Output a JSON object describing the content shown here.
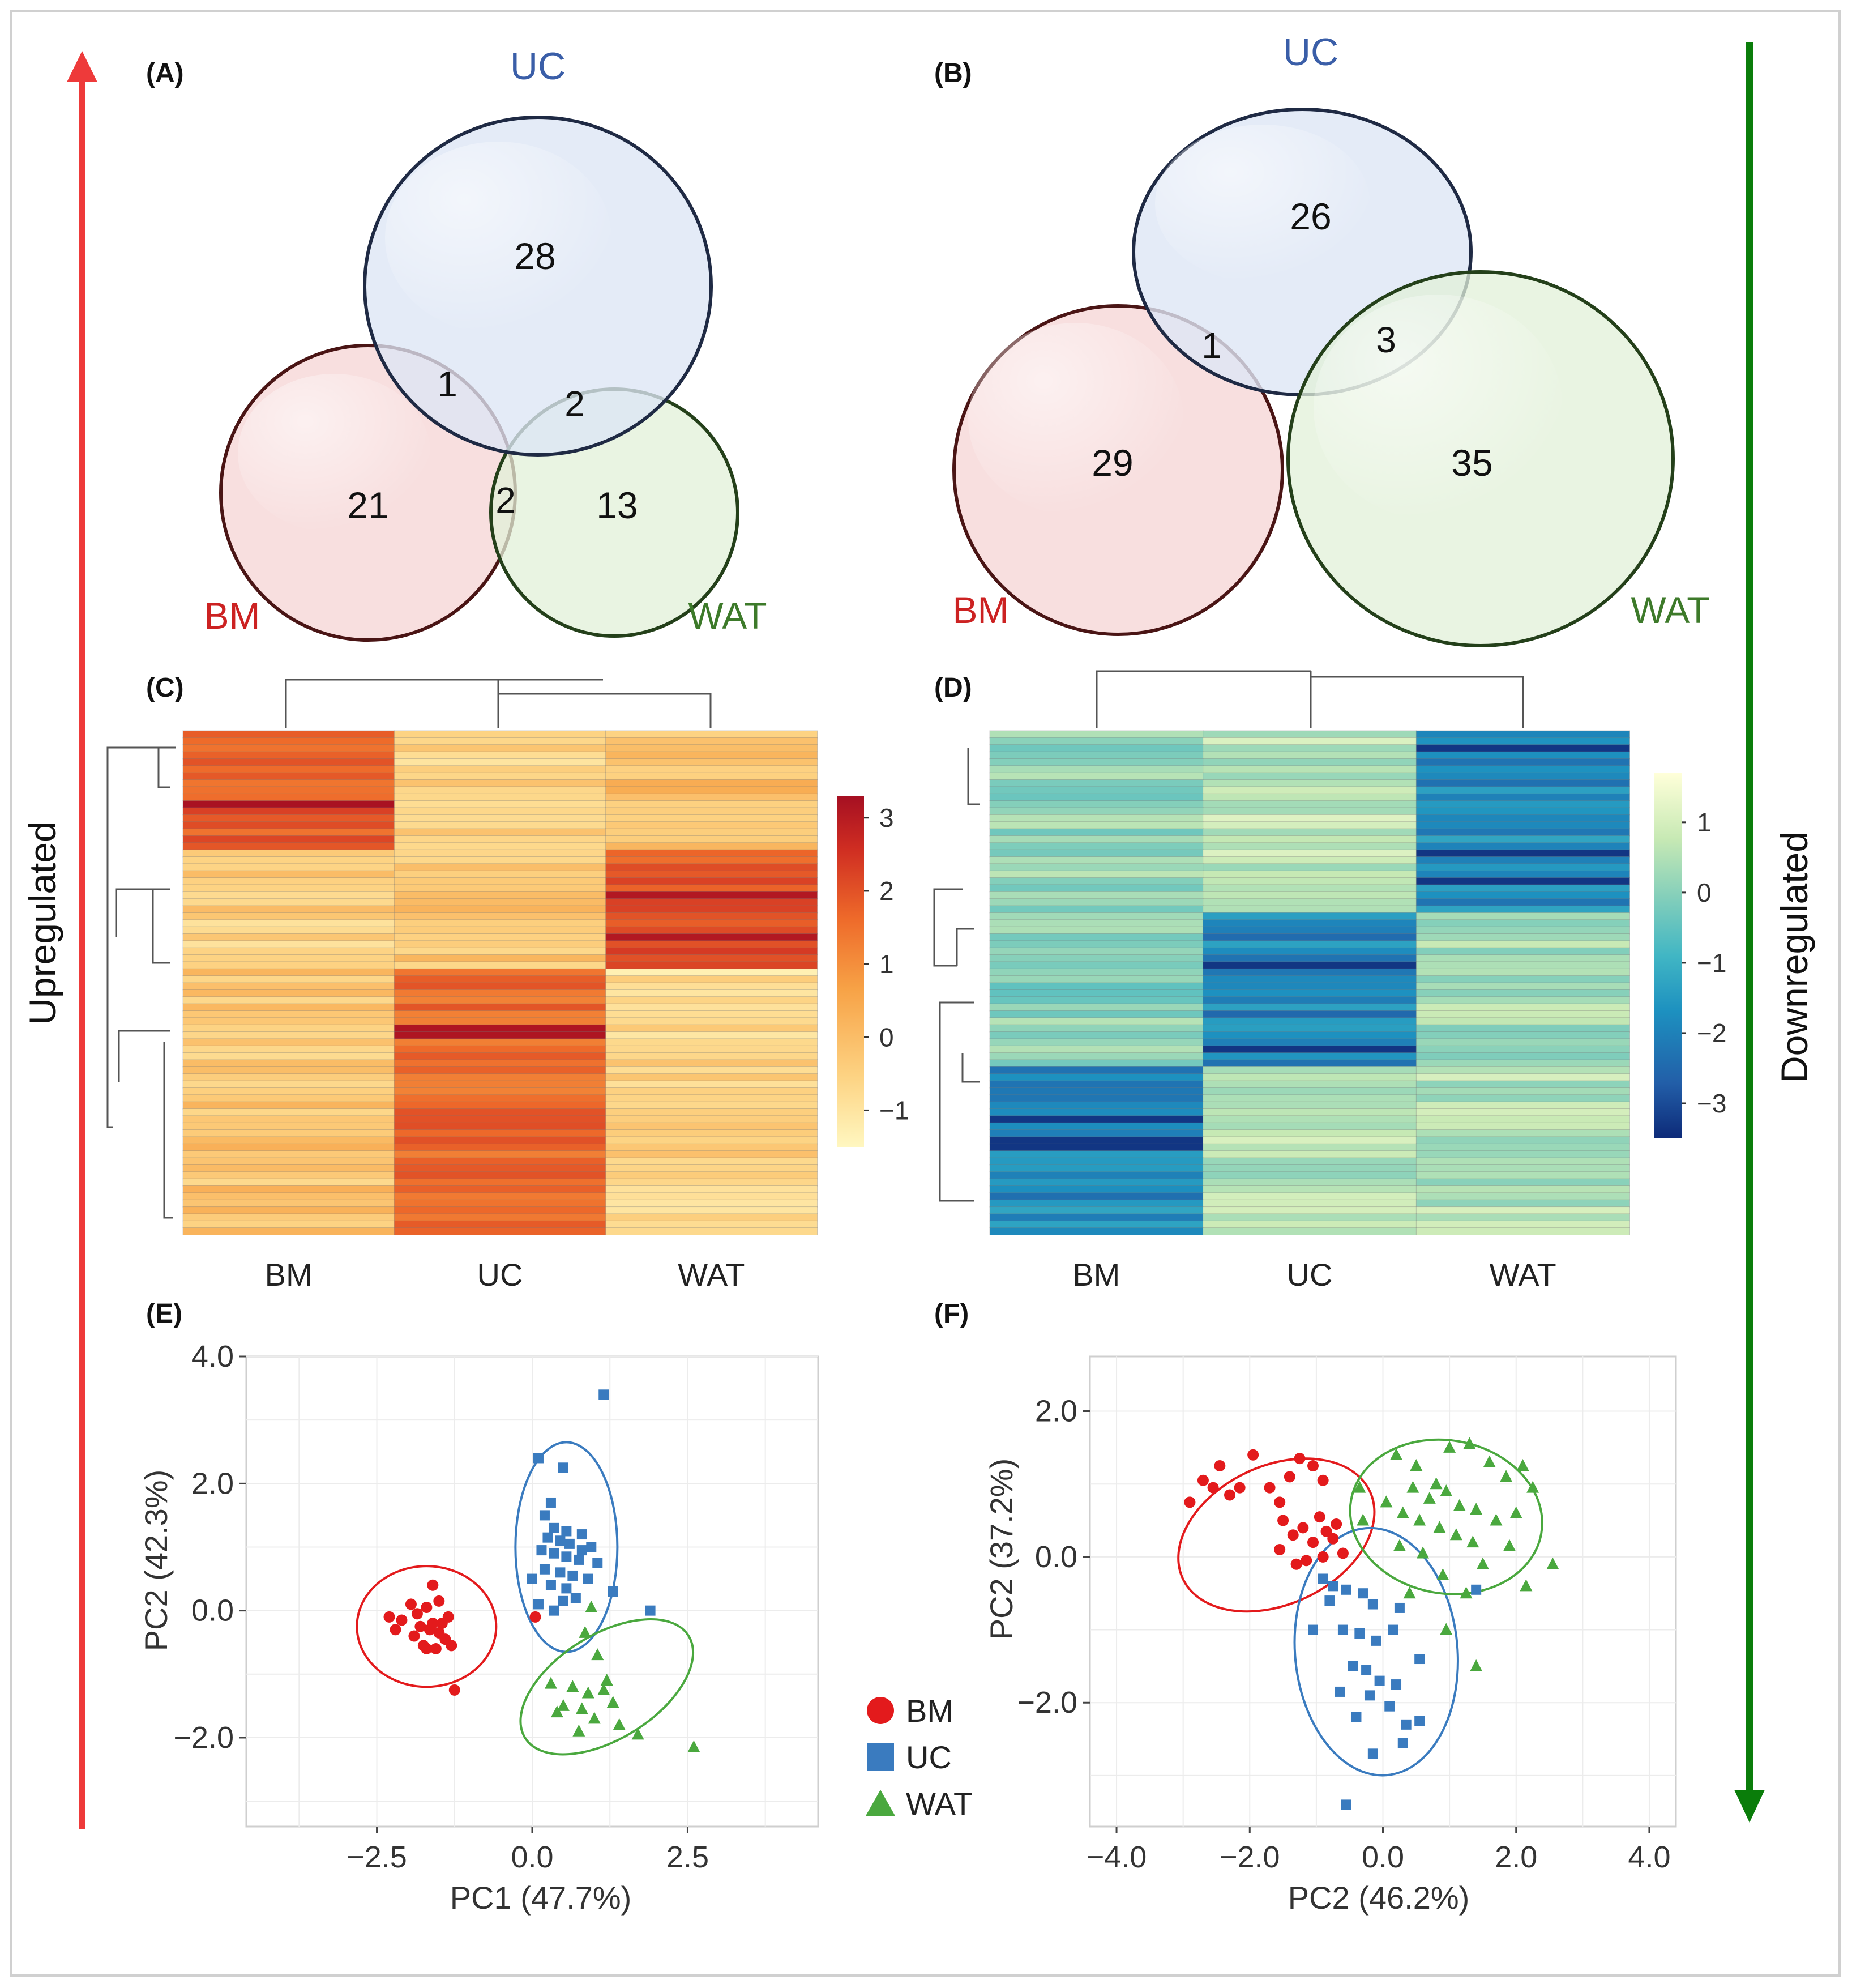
{
  "chart_data": [
    {
      "panel": "(A)",
      "type": "venn",
      "sets": [
        {
          "name": "UC",
          "color": "#3a5ea8",
          "fill": "#dde6f5",
          "stroke": "#1f2a44"
        },
        {
          "name": "BM",
          "color": "#cc2222",
          "fill": "#f6d4d4",
          "stroke": "#4a1515"
        },
        {
          "name": "WAT",
          "color": "#3d7a2a",
          "fill": "#e2f0d8",
          "stroke": "#24401a"
        }
      ],
      "regions": {
        "UC_only": "28",
        "BM_only": "21",
        "WAT_only": "13",
        "BM_UC": "1",
        "UC_WAT": "2",
        "BM_WAT": "2"
      }
    },
    {
      "panel": "(B)",
      "type": "venn",
      "sets": [
        {
          "name": "UC",
          "color": "#3a5ea8",
          "fill": "#dde6f5",
          "stroke": "#1f2a44"
        },
        {
          "name": "BM",
          "color": "#cc2222",
          "fill": "#f6d4d4",
          "stroke": "#4a1515"
        },
        {
          "name": "WAT",
          "color": "#3d7a2a",
          "fill": "#e2f0d8",
          "stroke": "#24401a"
        }
      ],
      "regions": {
        "UC_only": "26",
        "BM_only": "29",
        "WAT_only": "35",
        "BM_UC": "1",
        "UC_WAT": "3"
      }
    },
    {
      "panel": "(C)",
      "type": "heatmap",
      "direction": "up",
      "columns": [
        "BM",
        "UC",
        "WAT"
      ],
      "rows": 72,
      "colorbar": {
        "ticks": [
          "3",
          "2",
          "1",
          "0",
          "−1"
        ],
        "tick_values": [
          3,
          2,
          1,
          0,
          -1
        ],
        "range": [
          -1.5,
          3.3
        ],
        "colors": [
          "#fff7c0",
          "#fdd383",
          "#f7a246",
          "#ee6a2a",
          "#cf2d22",
          "#a50f22"
        ]
      }
    },
    {
      "panel": "(D)",
      "type": "heatmap",
      "direction": "down",
      "columns": [
        "BM",
        "UC",
        "WAT"
      ],
      "rows": 72,
      "colorbar": {
        "ticks": [
          "1",
          "0",
          "−1",
          "−2",
          "−3"
        ],
        "tick_values": [
          1,
          0,
          -1,
          -2,
          -3
        ],
        "range": [
          -3.5,
          1.7
        ],
        "colors": [
          "#0d2a78",
          "#225ea8",
          "#1d91c0",
          "#41b6c4",
          "#7fcdbb",
          "#c7e9b4",
          "#ffffd9"
        ]
      }
    },
    {
      "panel": "(E)",
      "type": "scatter",
      "xlabel": "PC1 (47.7%)",
      "ylabel": "PC2 (42.3%)",
      "xlim": [
        -4.6,
        4.6
      ],
      "ylim": [
        -3.4,
        4.0
      ],
      "xticks": [
        {
          "v": -2.5,
          "label": "−2.5"
        },
        {
          "v": 0,
          "label": "0.0"
        },
        {
          "v": 2.5,
          "label": "2.5"
        }
      ],
      "yticks": [
        {
          "v": 4,
          "label": "4.0"
        },
        {
          "v": 2,
          "label": "2.0"
        },
        {
          "v": 0,
          "label": "0.0"
        },
        {
          "v": -2,
          "label": "−2.0"
        }
      ],
      "series": [
        {
          "name": "BM",
          "shape": "circle",
          "color": "#e31a1c",
          "ellipse": {
            "cx": -1.7,
            "cy": -0.25,
            "rx": 1.12,
            "ry": 0.95,
            "angle": 0
          },
          "points": [
            [
              -2.3,
              -0.1
            ],
            [
              -2.2,
              -0.3
            ],
            [
              -2.1,
              -0.15
            ],
            [
              -1.95,
              0.1
            ],
            [
              -1.9,
              -0.4
            ],
            [
              -1.8,
              -0.25
            ],
            [
              -1.75,
              -0.55
            ],
            [
              -1.7,
              0.05
            ],
            [
              -1.65,
              -0.3
            ],
            [
              -1.6,
              -0.2
            ],
            [
              -1.6,
              0.4
            ],
            [
              -1.55,
              -0.6
            ],
            [
              -1.5,
              -0.35
            ],
            [
              -1.5,
              0.15
            ],
            [
              -1.45,
              -0.2
            ],
            [
              -1.4,
              -0.45
            ],
            [
              -1.35,
              -0.1
            ],
            [
              -1.3,
              -0.55
            ],
            [
              -1.25,
              -1.25
            ],
            [
              -1.7,
              -0.6
            ],
            [
              -1.85,
              -0.05
            ],
            [
              0.05,
              -0.1
            ]
          ]
        },
        {
          "name": "UC",
          "shape": "square",
          "color": "#3a7bbf",
          "ellipse": {
            "cx": 0.55,
            "cy": 1.0,
            "rx": 0.82,
            "ry": 1.65,
            "angle": 0
          },
          "points": [
            [
              1.15,
              3.4
            ],
            [
              0.1,
              2.4
            ],
            [
              0.5,
              2.25
            ],
            [
              0.2,
              1.5
            ],
            [
              0.35,
              1.3
            ],
            [
              0.55,
              1.25
            ],
            [
              0.8,
              1.2
            ],
            [
              0.25,
              1.15
            ],
            [
              0.45,
              1.1
            ],
            [
              0.6,
              1.05
            ],
            [
              0.95,
              1.0
            ],
            [
              0.15,
              0.95
            ],
            [
              0.35,
              0.9
            ],
            [
              0.55,
              0.85
            ],
            [
              0.75,
              0.8
            ],
            [
              1.05,
              0.75
            ],
            [
              0.2,
              0.65
            ],
            [
              0.45,
              0.6
            ],
            [
              0.65,
              0.55
            ],
            [
              0.9,
              0.5
            ],
            [
              0.3,
              0.4
            ],
            [
              0.55,
              0.35
            ],
            [
              0.1,
              0.1
            ],
            [
              0.35,
              0.0
            ],
            [
              0.7,
              0.2
            ],
            [
              1.9,
              0.0
            ],
            [
              0.0,
              0.5
            ],
            [
              1.3,
              0.3
            ],
            [
              0.5,
              0.15
            ],
            [
              0.8,
              0.95
            ],
            [
              0.3,
              1.7
            ]
          ]
        },
        {
          "name": "WAT",
          "shape": "triangle",
          "color": "#4aa83e",
          "ellipse": {
            "cx": 1.2,
            "cy": -1.2,
            "rx": 1.55,
            "ry": 0.82,
            "angle": -32
          },
          "points": [
            [
              0.95,
              0.05
            ],
            [
              0.85,
              -0.35
            ],
            [
              1.05,
              -0.7
            ],
            [
              0.3,
              -1.15
            ],
            [
              0.65,
              -1.2
            ],
            [
              0.9,
              -1.3
            ],
            [
              1.15,
              -1.25
            ],
            [
              1.3,
              -1.45
            ],
            [
              0.5,
              -1.5
            ],
            [
              0.8,
              -1.55
            ],
            [
              1.0,
              -1.7
            ],
            [
              1.4,
              -1.8
            ],
            [
              0.75,
              -1.9
            ],
            [
              1.7,
              -1.95
            ],
            [
              2.6,
              -2.15
            ],
            [
              1.2,
              -1.1
            ],
            [
              0.4,
              -1.6
            ]
          ]
        }
      ],
      "legend": [
        {
          "label": "BM",
          "shape": "circle",
          "color": "#e31a1c"
        },
        {
          "label": "UC",
          "shape": "square",
          "color": "#3a7bbf"
        },
        {
          "label": "WAT",
          "shape": "triangle",
          "color": "#4aa83e"
        }
      ]
    },
    {
      "panel": "(F)",
      "type": "scatter",
      "xlabel": "PC2 (46.2%)",
      "ylabel": "PC2 (37.2%)",
      "xlim": [
        -4.4,
        4.4
      ],
      "ylim": [
        -3.7,
        2.75
      ],
      "xticks": [
        {
          "v": -4,
          "label": "−4.0"
        },
        {
          "v": -2,
          "label": "−2.0"
        },
        {
          "v": 0,
          "label": "0.0"
        },
        {
          "v": 2,
          "label": "2.0"
        },
        {
          "v": 4,
          "label": "4.0"
        }
      ],
      "yticks": [
        {
          "v": 2,
          "label": "2.0"
        },
        {
          "v": 0,
          "label": "0.0"
        },
        {
          "v": -2,
          "label": "−2.0"
        }
      ],
      "series": [
        {
          "name": "BM",
          "shape": "circle",
          "color": "#e31a1c",
          "ellipse": {
            "cx": -1.6,
            "cy": 0.3,
            "rx": 1.55,
            "ry": 0.95,
            "angle": -25
          },
          "points": [
            [
              -2.9,
              0.75
            ],
            [
              -2.7,
              1.05
            ],
            [
              -2.55,
              0.95
            ],
            [
              -2.45,
              1.25
            ],
            [
              -2.3,
              0.85
            ],
            [
              -2.15,
              0.95
            ],
            [
              -1.95,
              1.4
            ],
            [
              -1.7,
              0.95
            ],
            [
              -1.55,
              0.75
            ],
            [
              -1.4,
              1.1
            ],
            [
              -1.25,
              1.35
            ],
            [
              -1.05,
              1.25
            ],
            [
              -0.9,
              1.05
            ],
            [
              -1.5,
              0.5
            ],
            [
              -1.35,
              0.3
            ],
            [
              -1.2,
              0.4
            ],
            [
              -0.95,
              0.55
            ],
            [
              -0.85,
              0.35
            ],
            [
              -1.05,
              0.2
            ],
            [
              -1.3,
              -0.1
            ],
            [
              -1.15,
              -0.05
            ],
            [
              -0.9,
              0.0
            ],
            [
              -0.75,
              0.25
            ],
            [
              -0.7,
              0.45
            ],
            [
              -1.55,
              0.1
            ],
            [
              -0.6,
              0.05
            ]
          ]
        },
        {
          "name": "UC",
          "shape": "square",
          "color": "#3a7bbf",
          "ellipse": {
            "cx": -0.1,
            "cy": -1.3,
            "rx": 1.22,
            "ry": 1.7,
            "angle": -5
          },
          "points": [
            [
              -0.9,
              -0.3
            ],
            [
              -0.75,
              -0.4
            ],
            [
              -0.55,
              -0.45
            ],
            [
              -0.3,
              -0.5
            ],
            [
              -0.15,
              -0.65
            ],
            [
              -0.6,
              -1.0
            ],
            [
              -0.35,
              -1.05
            ],
            [
              -0.1,
              -1.15
            ],
            [
              0.15,
              -1.0
            ],
            [
              -0.45,
              -1.5
            ],
            [
              -0.25,
              -1.55
            ],
            [
              -0.05,
              -1.7
            ],
            [
              0.2,
              -1.75
            ],
            [
              0.55,
              -1.4
            ],
            [
              -0.65,
              -1.85
            ],
            [
              -0.2,
              -1.9
            ],
            [
              0.35,
              -2.3
            ],
            [
              0.55,
              -2.25
            ],
            [
              0.3,
              -2.55
            ],
            [
              -0.15,
              -2.7
            ],
            [
              -1.05,
              -1.0
            ],
            [
              -0.4,
              -2.2
            ],
            [
              1.4,
              -0.45
            ],
            [
              -0.55,
              -3.4
            ],
            [
              0.25,
              -0.7
            ],
            [
              0.1,
              -2.05
            ],
            [
              -0.8,
              -0.6
            ]
          ]
        },
        {
          "name": "WAT",
          "shape": "triangle",
          "color": "#4aa83e",
          "ellipse": {
            "cx": 0.95,
            "cy": 0.55,
            "rx": 1.45,
            "ry": 1.05,
            "angle": 10
          },
          "points": [
            [
              0.2,
              1.4
            ],
            [
              0.5,
              1.25
            ],
            [
              0.8,
              1.0
            ],
            [
              1.0,
              1.5
            ],
            [
              1.3,
              1.55
            ],
            [
              1.6,
              1.3
            ],
            [
              1.85,
              1.1
            ],
            [
              2.1,
              1.25
            ],
            [
              2.25,
              0.95
            ],
            [
              0.45,
              0.95
            ],
            [
              0.7,
              0.8
            ],
            [
              0.95,
              0.9
            ],
            [
              1.15,
              0.7
            ],
            [
              1.4,
              0.65
            ],
            [
              1.7,
              0.5
            ],
            [
              2.0,
              0.6
            ],
            [
              0.3,
              0.6
            ],
            [
              0.55,
              0.5
            ],
            [
              0.85,
              0.4
            ],
            [
              1.1,
              0.3
            ],
            [
              1.35,
              0.2
            ],
            [
              1.9,
              0.15
            ],
            [
              2.55,
              -0.1
            ],
            [
              0.25,
              0.15
            ],
            [
              0.6,
              0.05
            ],
            [
              0.9,
              -0.25
            ],
            [
              1.25,
              -0.5
            ],
            [
              -0.3,
              0.5
            ],
            [
              0.05,
              0.75
            ],
            [
              1.5,
              -0.1
            ],
            [
              2.15,
              -0.4
            ],
            [
              0.4,
              -0.5
            ],
            [
              1.4,
              -1.5
            ],
            [
              0.95,
              -1.0
            ],
            [
              -0.35,
              0.95
            ]
          ]
        }
      ],
      "legend": []
    }
  ],
  "side_labels": {
    "left": "Upregulated",
    "right": "Downregulated"
  },
  "colors": {
    "up_arrow": "#ee3a3a",
    "down_arrow": "#0a7d0a",
    "grid": "#e4e4e4",
    "axis_text": "#333333"
  }
}
